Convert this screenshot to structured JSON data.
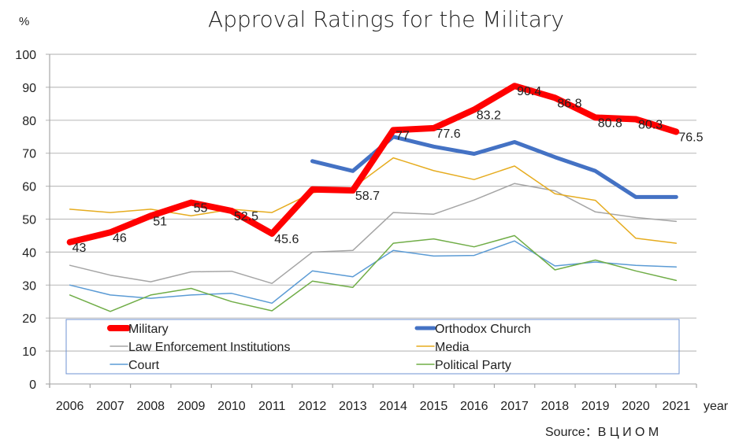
{
  "chart_data": {
    "type": "line",
    "title": "Approval Ratings for the Military",
    "ylabel": "%",
    "xlabel": "year",
    "source": "Source：В Ц И О М",
    "ylim": [
      0,
      100
    ],
    "yticks": [
      0,
      10,
      20,
      30,
      40,
      50,
      60,
      70,
      80,
      90,
      100
    ],
    "grid": true,
    "legend_position": "bottom-inside",
    "categories": [
      "2006",
      "2007",
      "2008",
      "2009",
      "2010",
      "2011",
      "2012",
      "2013",
      "2014",
      "2015",
      "2016",
      "2017",
      "2018",
      "2019",
      "2020",
      "2021"
    ],
    "series": [
      {
        "name": "Military",
        "color": "#ff0000",
        "emphasis": "thick",
        "values": [
          43,
          46,
          51,
          55,
          52.5,
          45.6,
          59,
          58.7,
          77,
          77.6,
          83.2,
          90.4,
          86.8,
          80.8,
          80.3,
          76.5
        ],
        "labels": [
          "43",
          "46",
          "51",
          "55",
          "52.5",
          "45.6",
          "",
          "58.7",
          "77",
          "77.6",
          "83.2",
          "90.4",
          "86.8",
          "80.8",
          "80.3",
          "76.5"
        ]
      },
      {
        "name": "Orthodox Church",
        "color": "#4472c4",
        "emphasis": "medium",
        "values": [
          null,
          null,
          null,
          null,
          null,
          null,
          67.6,
          64.6,
          75,
          72,
          69.8,
          73.4,
          68.8,
          64.6,
          56.7,
          56.7
        ]
      },
      {
        "name": "Law Enforcement Institutions",
        "color": "#a5a5a5",
        "emphasis": "thin",
        "values": [
          36,
          33,
          31,
          34,
          34.2,
          30.5,
          40,
          40.5,
          52,
          51.5,
          55.8,
          60.8,
          58.6,
          52.2,
          50.5,
          49.3
        ]
      },
      {
        "name": "Media",
        "color": "#e6ac1f",
        "emphasis": "thin",
        "values": [
          53,
          52,
          53,
          51,
          53,
          52,
          58,
          59.5,
          68.6,
          64.7,
          62,
          66.1,
          57.7,
          55.7,
          44.2,
          42.7
        ]
      },
      {
        "name": "Court",
        "color": "#5b9bd5",
        "emphasis": "thin",
        "values": [
          30,
          27,
          26,
          27,
          27.5,
          24.5,
          34.3,
          32.5,
          40.5,
          38.8,
          39,
          43.4,
          35.8,
          37,
          36,
          35.5
        ]
      },
      {
        "name": "Political Party",
        "color": "#70ad47",
        "emphasis": "thin",
        "values": [
          27,
          22,
          27,
          29,
          25,
          22.2,
          31.2,
          29.3,
          42.7,
          44,
          41.6,
          45,
          34.6,
          37.6,
          34.3,
          31.4
        ]
      }
    ],
    "legend": [
      {
        "name": "Military",
        "column": 0
      },
      {
        "name": "Orthodox Church",
        "column": 1
      },
      {
        "name": "Law Enforcement Institutions",
        "column": 0
      },
      {
        "name": "Media",
        "column": 1
      },
      {
        "name": "Court",
        "column": 0
      },
      {
        "name": "Political Party",
        "column": 1
      }
    ]
  }
}
